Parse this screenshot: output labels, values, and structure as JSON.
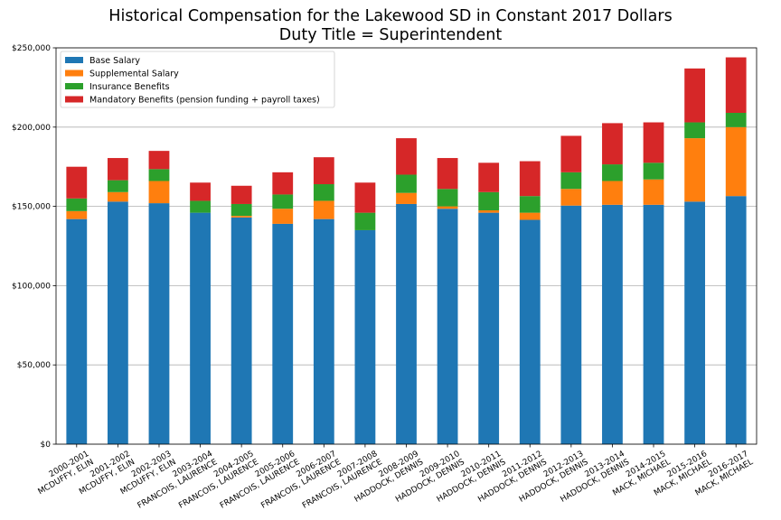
{
  "chart_data": {
    "type": "bar",
    "stacked": true,
    "title": "Historical Compensation for the Lakewood SD in Constant 2017 Dollars",
    "subtitle": "Duty Title = Superintendent",
    "xlabel": "",
    "ylabel": "",
    "ylim": [
      0,
      250000
    ],
    "yticks": [
      {
        "value": 0,
        "label": "$0"
      },
      {
        "value": 50000,
        "label": "$50,000"
      },
      {
        "value": 100000,
        "label": "$100,000"
      },
      {
        "value": 150000,
        "label": "$150,000"
      },
      {
        "value": 200000,
        "label": "$200,000"
      },
      {
        "value": 250000,
        "label": "$250,000"
      }
    ],
    "grid": "horizontal",
    "legend_position": "top-left",
    "categories": [
      {
        "year": "2000-2001",
        "name": "MCDUFFY, ELIN"
      },
      {
        "year": "2001-2002",
        "name": "MCDUFFY, ELIN"
      },
      {
        "year": "2002-2003",
        "name": "MCDUFFY, ELIN"
      },
      {
        "year": "2003-2004",
        "name": "FRANCOIS, LAURENCE"
      },
      {
        "year": "2004-2005",
        "name": "FRANCOIS, LAURENCE"
      },
      {
        "year": "2005-2006",
        "name": "FRANCOIS, LAURENCE"
      },
      {
        "year": "2006-2007",
        "name": "FRANCOIS, LAURENCE"
      },
      {
        "year": "2007-2008",
        "name": "FRANCOIS, LAURENCE"
      },
      {
        "year": "2008-2009",
        "name": "HADDOCK, DENNIS"
      },
      {
        "year": "2009-2010",
        "name": "HADDOCK, DENNIS"
      },
      {
        "year": "2010-2011",
        "name": "HADDOCK, DENNIS"
      },
      {
        "year": "2011-2012",
        "name": "HADDOCK, DENNIS"
      },
      {
        "year": "2012-2013",
        "name": "HADDOCK, DENNIS"
      },
      {
        "year": "2013-2014",
        "name": "HADDOCK, DENNIS"
      },
      {
        "year": "2014-2015",
        "name": "MACK, MICHAEL"
      },
      {
        "year": "2015-2016",
        "name": "MACK, MICHAEL"
      },
      {
        "year": "2016-2017",
        "name": "MACK, MICHAEL"
      }
    ],
    "series": [
      {
        "name": "Base Salary",
        "color": "#1f77b4",
        "values": [
          142000,
          153000,
          152000,
          146000,
          143000,
          139000,
          142000,
          135000,
          151500,
          148500,
          146000,
          141500,
          150500,
          151000,
          151000,
          153000,
          156500
        ]
      },
      {
        "name": "Supplemental Salary",
        "color": "#ff7f0e",
        "values": [
          5000,
          6000,
          14000,
          0,
          1000,
          9500,
          11500,
          0,
          7000,
          1500,
          1500,
          4500,
          10500,
          15000,
          16000,
          40000,
          43500
        ]
      },
      {
        "name": "Insurance Benefits",
        "color": "#2ca02c",
        "values": [
          8000,
          7500,
          7500,
          7500,
          7500,
          9000,
          10500,
          11000,
          11500,
          11000,
          11500,
          10500,
          10500,
          10500,
          10500,
          10000,
          9000
        ]
      },
      {
        "name": "Mandatory Benefits (pension funding + payroll taxes)",
        "color": "#d62728",
        "values": [
          20000,
          14000,
          11500,
          11500,
          11500,
          14000,
          17000,
          19000,
          23000,
          19500,
          18500,
          22000,
          23000,
          26000,
          25500,
          34000,
          35000
        ]
      }
    ]
  }
}
